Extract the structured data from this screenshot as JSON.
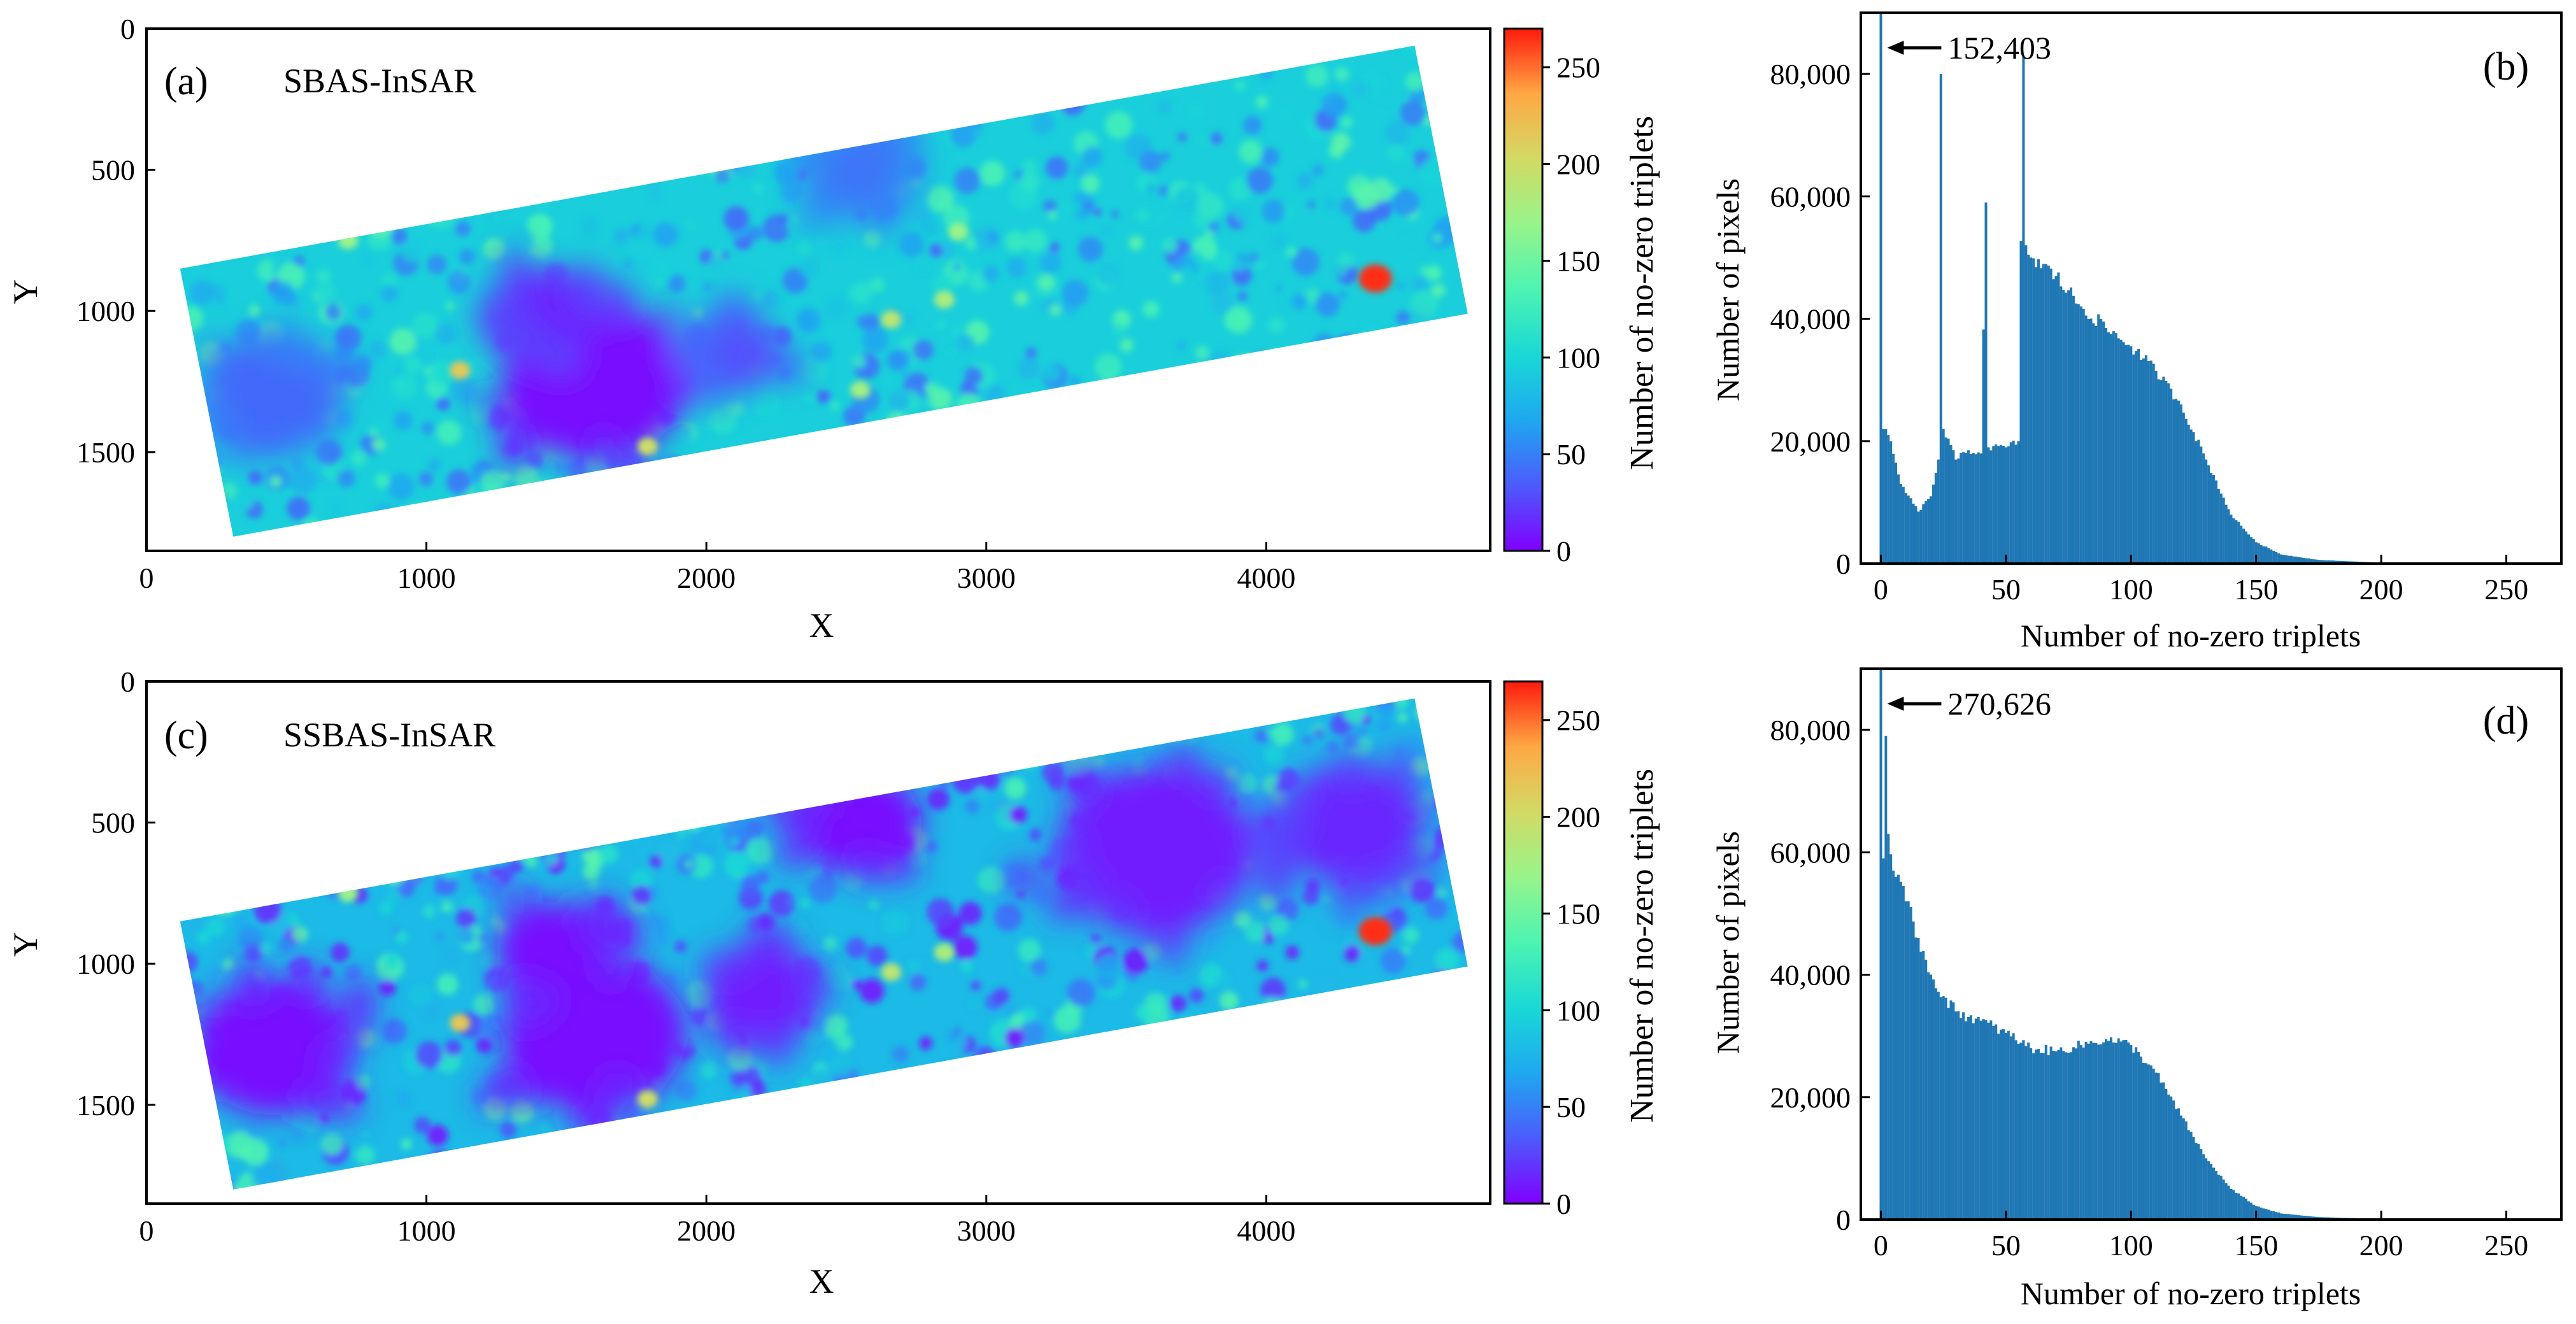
{
  "chart_data": [
    {
      "id": "a",
      "type": "heatmap",
      "panel_label": "(a)",
      "title": "SBAS-InSAR",
      "xlabel": "X",
      "ylabel": "Y",
      "xlim": [
        0,
        4800
      ],
      "ylim": [
        1850,
        0
      ],
      "xticks": [
        0,
        1000,
        2000,
        3000,
        4000
      ],
      "yticks": [
        0,
        500,
        1000,
        1500
      ],
      "footprint": [
        [
          120,
          850
        ],
        [
          4530,
          60
        ],
        [
          4720,
          1010
        ],
        [
          310,
          1800
        ]
      ],
      "colorbar": {
        "label": "Number of no-zero triplets",
        "min": 0,
        "max": 270,
        "ticks": [
          0,
          50,
          100,
          150,
          200,
          250
        ]
      },
      "hotspots": [
        {
          "x": 4390,
          "y": 885,
          "value": 265
        },
        {
          "x": 1120,
          "y": 1210,
          "value": 215
        },
        {
          "x": 1790,
          "y": 1480,
          "value": 200
        },
        {
          "x": 2660,
          "y": 1030,
          "value": 190
        },
        {
          "x": 2850,
          "y": 960,
          "value": 180
        },
        {
          "x": 720,
          "y": 750,
          "value": 170
        },
        {
          "x": 2550,
          "y": 1280,
          "value": 175
        },
        {
          "x": 2900,
          "y": 720,
          "value": 170
        }
      ],
      "low_zones": [
        {
          "x": 1600,
          "y": 1250,
          "r": 330,
          "value": 5
        },
        {
          "x": 1450,
          "y": 1000,
          "r": 180,
          "value": 15
        },
        {
          "x": 450,
          "y": 1300,
          "r": 260,
          "value": 40
        },
        {
          "x": 2550,
          "y": 500,
          "r": 200,
          "value": 45
        },
        {
          "x": 2100,
          "y": 1150,
          "r": 160,
          "value": 30
        }
      ]
    },
    {
      "id": "b",
      "type": "bar",
      "panel_label": "(b)",
      "xlabel": "Number of no-zero triplets",
      "ylabel": "Number of pixels",
      "xlim": [
        -8,
        272
      ],
      "ylim": [
        0,
        90000
      ],
      "xticks": [
        0,
        50,
        100,
        150,
        200,
        250
      ],
      "yticks": [
        0,
        20000,
        40000,
        60000,
        80000
      ],
      "ytick_labels": [
        "0",
        "20,000",
        "40,000",
        "60,000",
        "80,000"
      ],
      "annotation": {
        "text": "152,403",
        "x": 0,
        "value": 152403
      },
      "key_points": [
        [
          0,
          152403
        ],
        [
          1,
          22000
        ],
        [
          3,
          21000
        ],
        [
          8,
          13000
        ],
        [
          15,
          8500
        ],
        [
          20,
          11000
        ],
        [
          23,
          17000
        ],
        [
          24,
          80000
        ],
        [
          25,
          22000
        ],
        [
          30,
          17000
        ],
        [
          35,
          18500
        ],
        [
          40,
          18000
        ],
        [
          42,
          59000
        ],
        [
          43,
          19000
        ],
        [
          50,
          19000
        ],
        [
          55,
          20000
        ],
        [
          57,
          83000
        ],
        [
          58,
          52000
        ],
        [
          60,
          50000
        ],
        [
          70,
          47000
        ],
        [
          80,
          42000
        ],
        [
          90,
          38500
        ],
        [
          100,
          35500
        ],
        [
          110,
          31500
        ],
        [
          120,
          26000
        ],
        [
          130,
          17000
        ],
        [
          140,
          8000
        ],
        [
          150,
          3500
        ],
        [
          160,
          1500
        ],
        [
          175,
          600
        ],
        [
          200,
          150
        ],
        [
          250,
          0
        ]
      ]
    },
    {
      "id": "c",
      "type": "heatmap",
      "panel_label": "(c)",
      "title": "SSBAS-InSAR",
      "xlabel": "X",
      "ylabel": "Y",
      "xlim": [
        0,
        4800
      ],
      "ylim": [
        1850,
        0
      ],
      "xticks": [
        0,
        1000,
        2000,
        3000,
        4000
      ],
      "yticks": [
        0,
        500,
        1000,
        1500
      ],
      "footprint": [
        [
          120,
          850
        ],
        [
          4530,
          60
        ],
        [
          4720,
          1010
        ],
        [
          310,
          1800
        ]
      ],
      "colorbar": {
        "label": "Number of no-zero triplets",
        "min": 0,
        "max": 270,
        "ticks": [
          0,
          50,
          100,
          150,
          200,
          250
        ]
      },
      "hotspots": [
        {
          "x": 4390,
          "y": 885,
          "value": 265
        },
        {
          "x": 1120,
          "y": 1210,
          "value": 215
        },
        {
          "x": 1790,
          "y": 1480,
          "value": 200
        },
        {
          "x": 2660,
          "y": 1030,
          "value": 190
        },
        {
          "x": 2850,
          "y": 960,
          "value": 180
        },
        {
          "x": 720,
          "y": 750,
          "value": 170
        }
      ],
      "low_zones": [
        {
          "x": 1600,
          "y": 1250,
          "r": 330,
          "value": 5
        },
        {
          "x": 450,
          "y": 1300,
          "r": 280,
          "value": 5
        },
        {
          "x": 2550,
          "y": 500,
          "r": 220,
          "value": 5
        },
        {
          "x": 3600,
          "y": 600,
          "r": 350,
          "value": 10
        },
        {
          "x": 4300,
          "y": 500,
          "r": 250,
          "value": 15
        },
        {
          "x": 1450,
          "y": 950,
          "r": 200,
          "value": 5
        },
        {
          "x": 2200,
          "y": 1100,
          "r": 200,
          "value": 10
        }
      ]
    },
    {
      "id": "d",
      "type": "bar",
      "panel_label": "(d)",
      "xlabel": "Number of no-zero triplets",
      "ylabel": "Number of pixels",
      "xlim": [
        -8,
        272
      ],
      "ylim": [
        0,
        90000
      ],
      "xticks": [
        0,
        50,
        100,
        150,
        200,
        250
      ],
      "yticks": [
        0,
        20000,
        40000,
        60000,
        80000
      ],
      "ytick_labels": [
        "0",
        "20,000",
        "40,000",
        "60,000",
        "80,000"
      ],
      "annotation": {
        "text": "270,626",
        "x": 0,
        "value": 270626
      },
      "key_points": [
        [
          0,
          270626
        ],
        [
          1,
          59000
        ],
        [
          2,
          79000
        ],
        [
          3,
          63000
        ],
        [
          5,
          57000
        ],
        [
          10,
          52000
        ],
        [
          15,
          46000
        ],
        [
          20,
          40000
        ],
        [
          25,
          36500
        ],
        [
          30,
          34000
        ],
        [
          40,
          32500
        ],
        [
          50,
          30500
        ],
        [
          60,
          28000
        ],
        [
          70,
          27500
        ],
        [
          80,
          28500
        ],
        [
          90,
          29500
        ],
        [
          100,
          28500
        ],
        [
          110,
          24000
        ],
        [
          120,
          17000
        ],
        [
          130,
          10000
        ],
        [
          140,
          5000
        ],
        [
          150,
          2200
        ],
        [
          160,
          1000
        ],
        [
          175,
          400
        ],
        [
          200,
          100
        ],
        [
          250,
          0
        ]
      ]
    }
  ]
}
